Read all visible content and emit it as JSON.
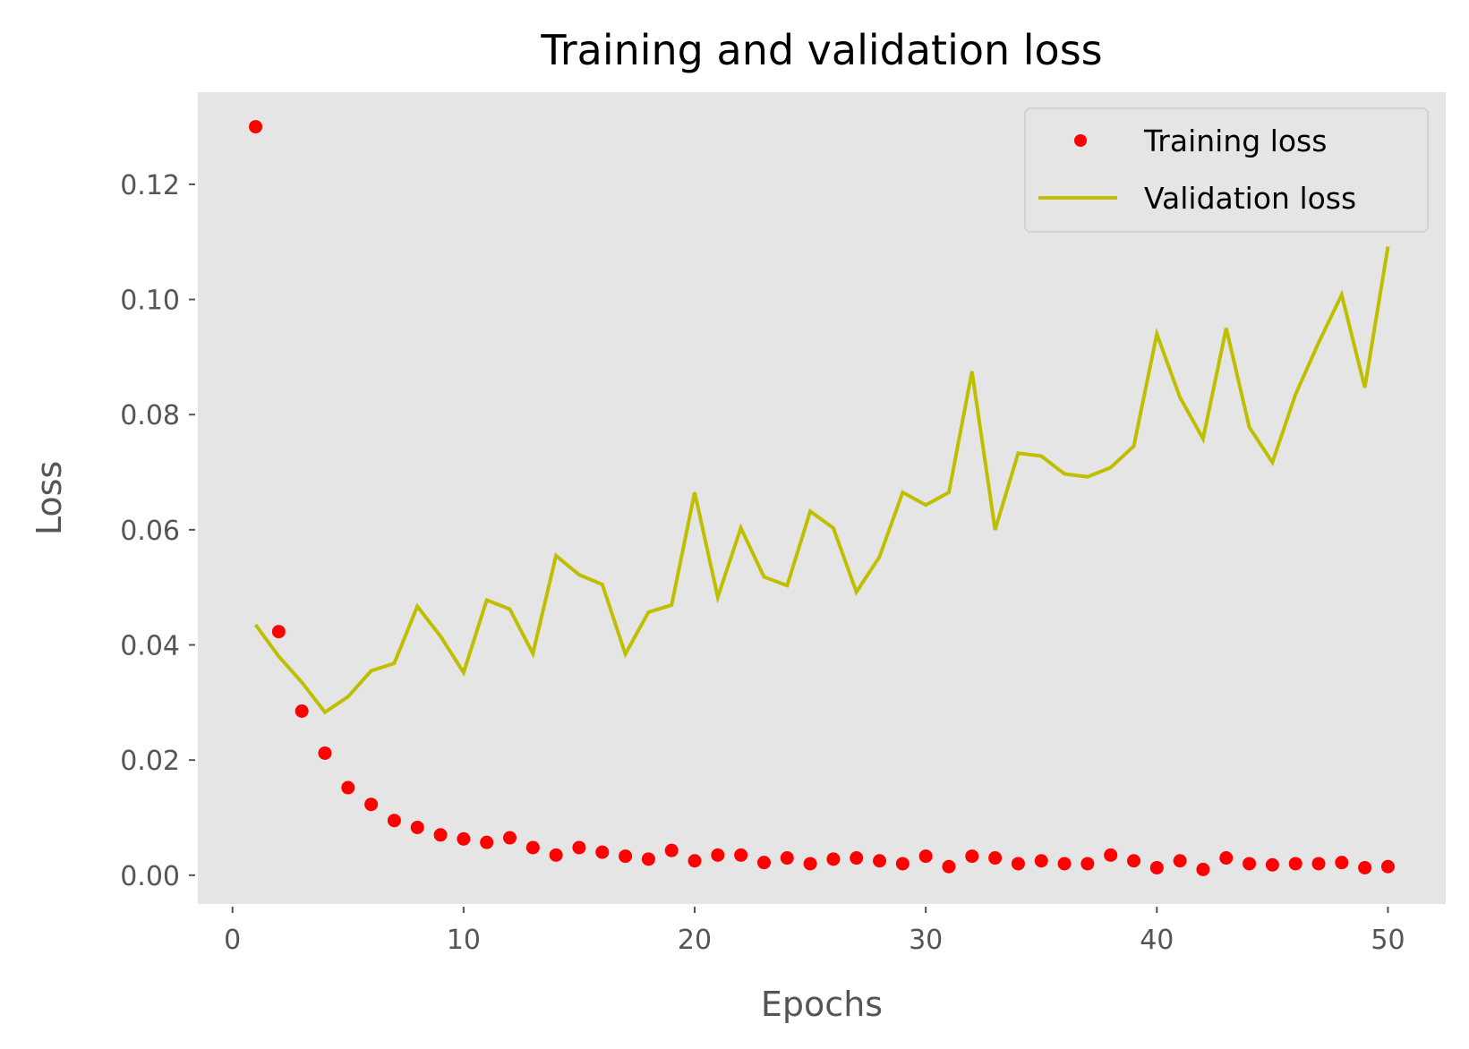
{
  "chart_data": {
    "type": "line",
    "title": "Training and validation loss",
    "xlabel": "Epochs",
    "ylabel": "Loss",
    "xlim": [
      -1.5,
      52.5
    ],
    "ylim": [
      -0.005,
      0.136
    ],
    "xticks": [
      0,
      10,
      20,
      30,
      40,
      50
    ],
    "xtick_labels": [
      "0",
      "10",
      "20",
      "30",
      "40",
      "50"
    ],
    "yticks": [
      0.0,
      0.02,
      0.04,
      0.06,
      0.08,
      0.1,
      0.12
    ],
    "ytick_labels": [
      "0.00",
      "0.02",
      "0.04",
      "0.06",
      "0.08",
      "0.10",
      "0.12"
    ],
    "grid": false,
    "legend_position": "top-right",
    "x": [
      1,
      2,
      3,
      4,
      5,
      6,
      7,
      8,
      9,
      10,
      11,
      12,
      13,
      14,
      15,
      16,
      17,
      18,
      19,
      20,
      21,
      22,
      23,
      24,
      25,
      26,
      27,
      28,
      29,
      30,
      31,
      32,
      33,
      34,
      35,
      36,
      37,
      38,
      39,
      40,
      41,
      42,
      43,
      44,
      45,
      46,
      47,
      48,
      49,
      50
    ],
    "series": [
      {
        "name": "Training loss",
        "style": "points",
        "color": "#ff0000",
        "values": [
          0.13,
          0.0423,
          0.0285,
          0.0212,
          0.0152,
          0.0123,
          0.0095,
          0.0083,
          0.007,
          0.0063,
          0.0057,
          0.0065,
          0.0048,
          0.0035,
          0.0048,
          0.004,
          0.0033,
          0.0028,
          0.0043,
          0.0025,
          0.0035,
          0.0035,
          0.0022,
          0.003,
          0.002,
          0.0028,
          0.003,
          0.0025,
          0.002,
          0.0033,
          0.0015,
          0.0033,
          0.003,
          0.002,
          0.0025,
          0.002,
          0.002,
          0.0035,
          0.0025,
          0.0013,
          0.0025,
          0.001,
          0.003,
          0.002,
          0.0018,
          0.002,
          0.002,
          0.0022,
          0.0013,
          0.0015
        ]
      },
      {
        "name": "Validation loss",
        "style": "line",
        "color": "#bfbf00",
        "values": [
          0.0435,
          0.038,
          0.0335,
          0.0283,
          0.031,
          0.0355,
          0.0368,
          0.0467,
          0.0415,
          0.0352,
          0.0478,
          0.0462,
          0.0385,
          0.0555,
          0.0522,
          0.0505,
          0.0384,
          0.0457,
          0.0469,
          0.0665,
          0.0483,
          0.0603,
          0.0518,
          0.0503,
          0.0632,
          0.0603,
          0.0492,
          0.0553,
          0.0665,
          0.0643,
          0.0665,
          0.0875,
          0.06,
          0.0733,
          0.0728,
          0.0697,
          0.0692,
          0.0708,
          0.0745,
          0.094,
          0.083,
          0.0758,
          0.095,
          0.0778,
          0.0717,
          0.0835,
          0.0925,
          0.1008,
          0.0847,
          0.1092
        ]
      }
    ]
  },
  "colors": {
    "plot_background": "#e5e5e5",
    "tick_text": "#555555"
  }
}
